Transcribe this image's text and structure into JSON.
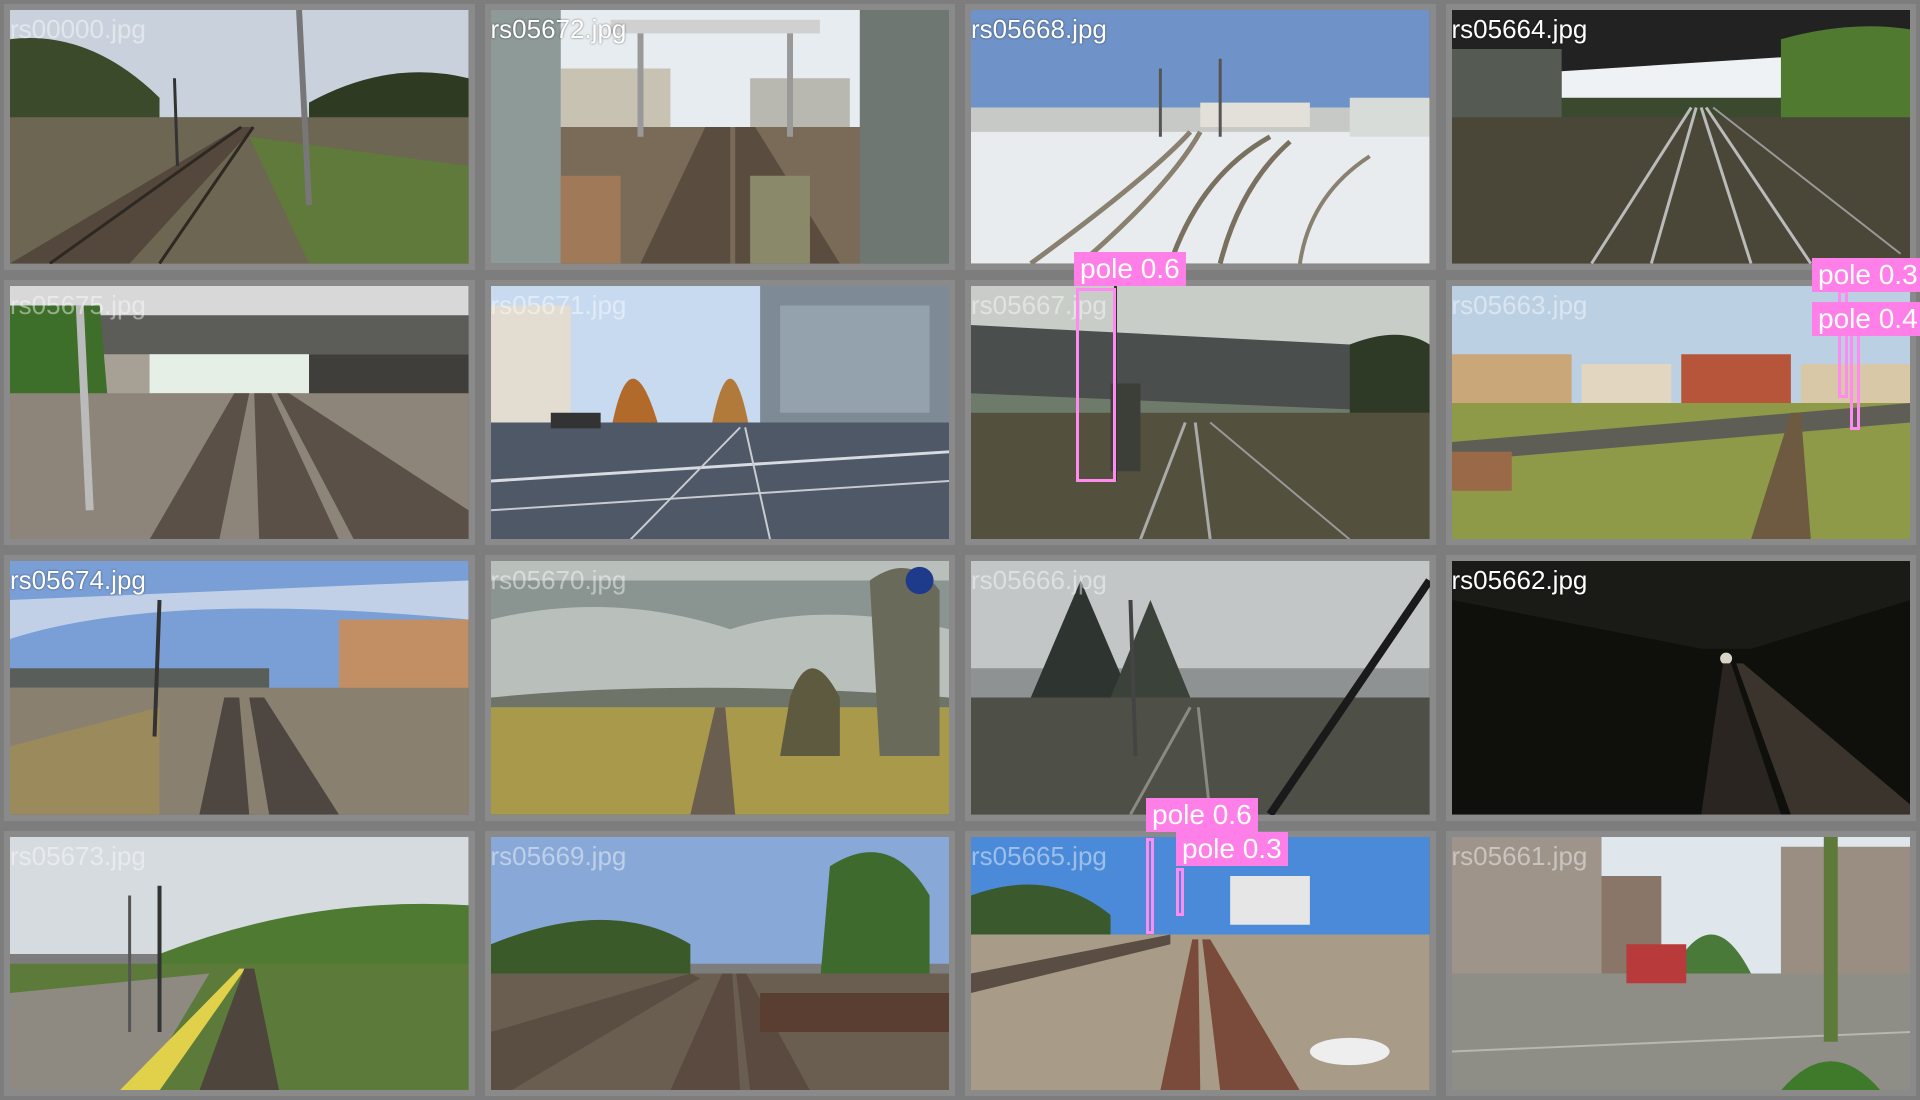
{
  "mosaic": {
    "tiles": [
      {
        "filename": "rs00000.jpg"
      },
      {
        "filename": "rs05672.jpg"
      },
      {
        "filename": "rs05668.jpg"
      },
      {
        "filename": "rs05664.jpg"
      },
      {
        "filename": "rs05675.jpg"
      },
      {
        "filename": "rs05671.jpg"
      },
      {
        "filename": "rs05667.jpg"
      },
      {
        "filename": "rs05663.jpg"
      },
      {
        "filename": "rs05674.jpg"
      },
      {
        "filename": "rs05670.jpg"
      },
      {
        "filename": "rs05666.jpg"
      },
      {
        "filename": "rs05662.jpg"
      },
      {
        "filename": "rs05673.jpg"
      },
      {
        "filename": "rs05669.jpg"
      },
      {
        "filename": "rs05665.jpg"
      },
      {
        "filename": "rs05661.jpg"
      }
    ]
  },
  "detections": [
    {
      "label": "pole 0.6"
    },
    {
      "label": "pole 0.3"
    },
    {
      "label": "pole 0.4"
    },
    {
      "label": "pole 0.6"
    },
    {
      "label": "pole 0.3"
    }
  ],
  "colors": {
    "detection_box": "#ff8af0",
    "detection_label_bg": "#ff7fe8",
    "tile_border": "#8a8a8a",
    "background": "#7d7d7d"
  }
}
